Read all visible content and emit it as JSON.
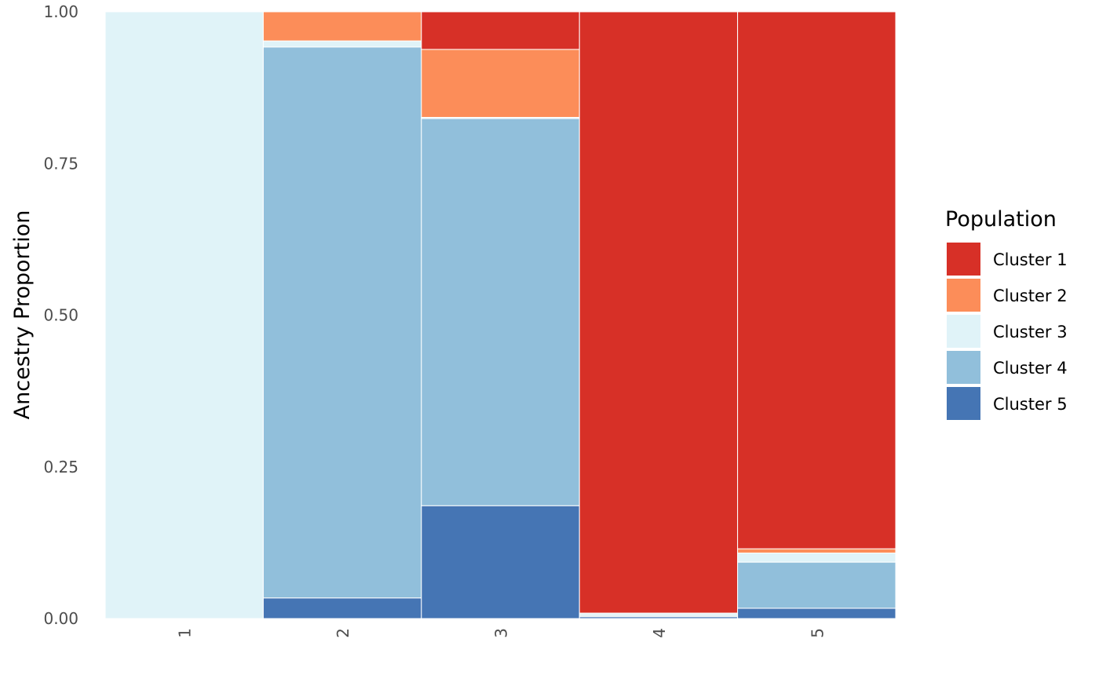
{
  "chart_data": {
    "type": "bar",
    "stacked": true,
    "categories": [
      "1",
      "2",
      "3",
      "4",
      "5"
    ],
    "ylabel": "Ancestry Proportion",
    "ylim": [
      0,
      1
    ],
    "y_ticks": [
      "0.00",
      "0.25",
      "0.50",
      "0.75",
      "1.00"
    ],
    "y_tick_values": [
      0,
      0.25,
      0.5,
      0.75,
      1.0
    ],
    "legend_title": "Population",
    "legend_position": "right",
    "grid": false,
    "series": [
      {
        "name": "Cluster 1",
        "color": "#D73027",
        "values": [
          0.0,
          0.0,
          0.062,
          0.991,
          0.885
        ]
      },
      {
        "name": "Cluster 2",
        "color": "#FC8D59",
        "values": [
          0.0,
          0.048,
          0.112,
          0.0,
          0.007
        ]
      },
      {
        "name": "Cluster 3",
        "color": "#E0F3F8",
        "values": [
          1.0,
          0.01,
          0.002,
          0.004,
          0.015
        ]
      },
      {
        "name": "Cluster 4",
        "color": "#91BFDB",
        "values": [
          0.0,
          0.908,
          0.638,
          0.002,
          0.076
        ]
      },
      {
        "name": "Cluster 5",
        "color": "#4575B4",
        "values": [
          0.0,
          0.034,
          0.186,
          0.003,
          0.017
        ]
      }
    ]
  }
}
